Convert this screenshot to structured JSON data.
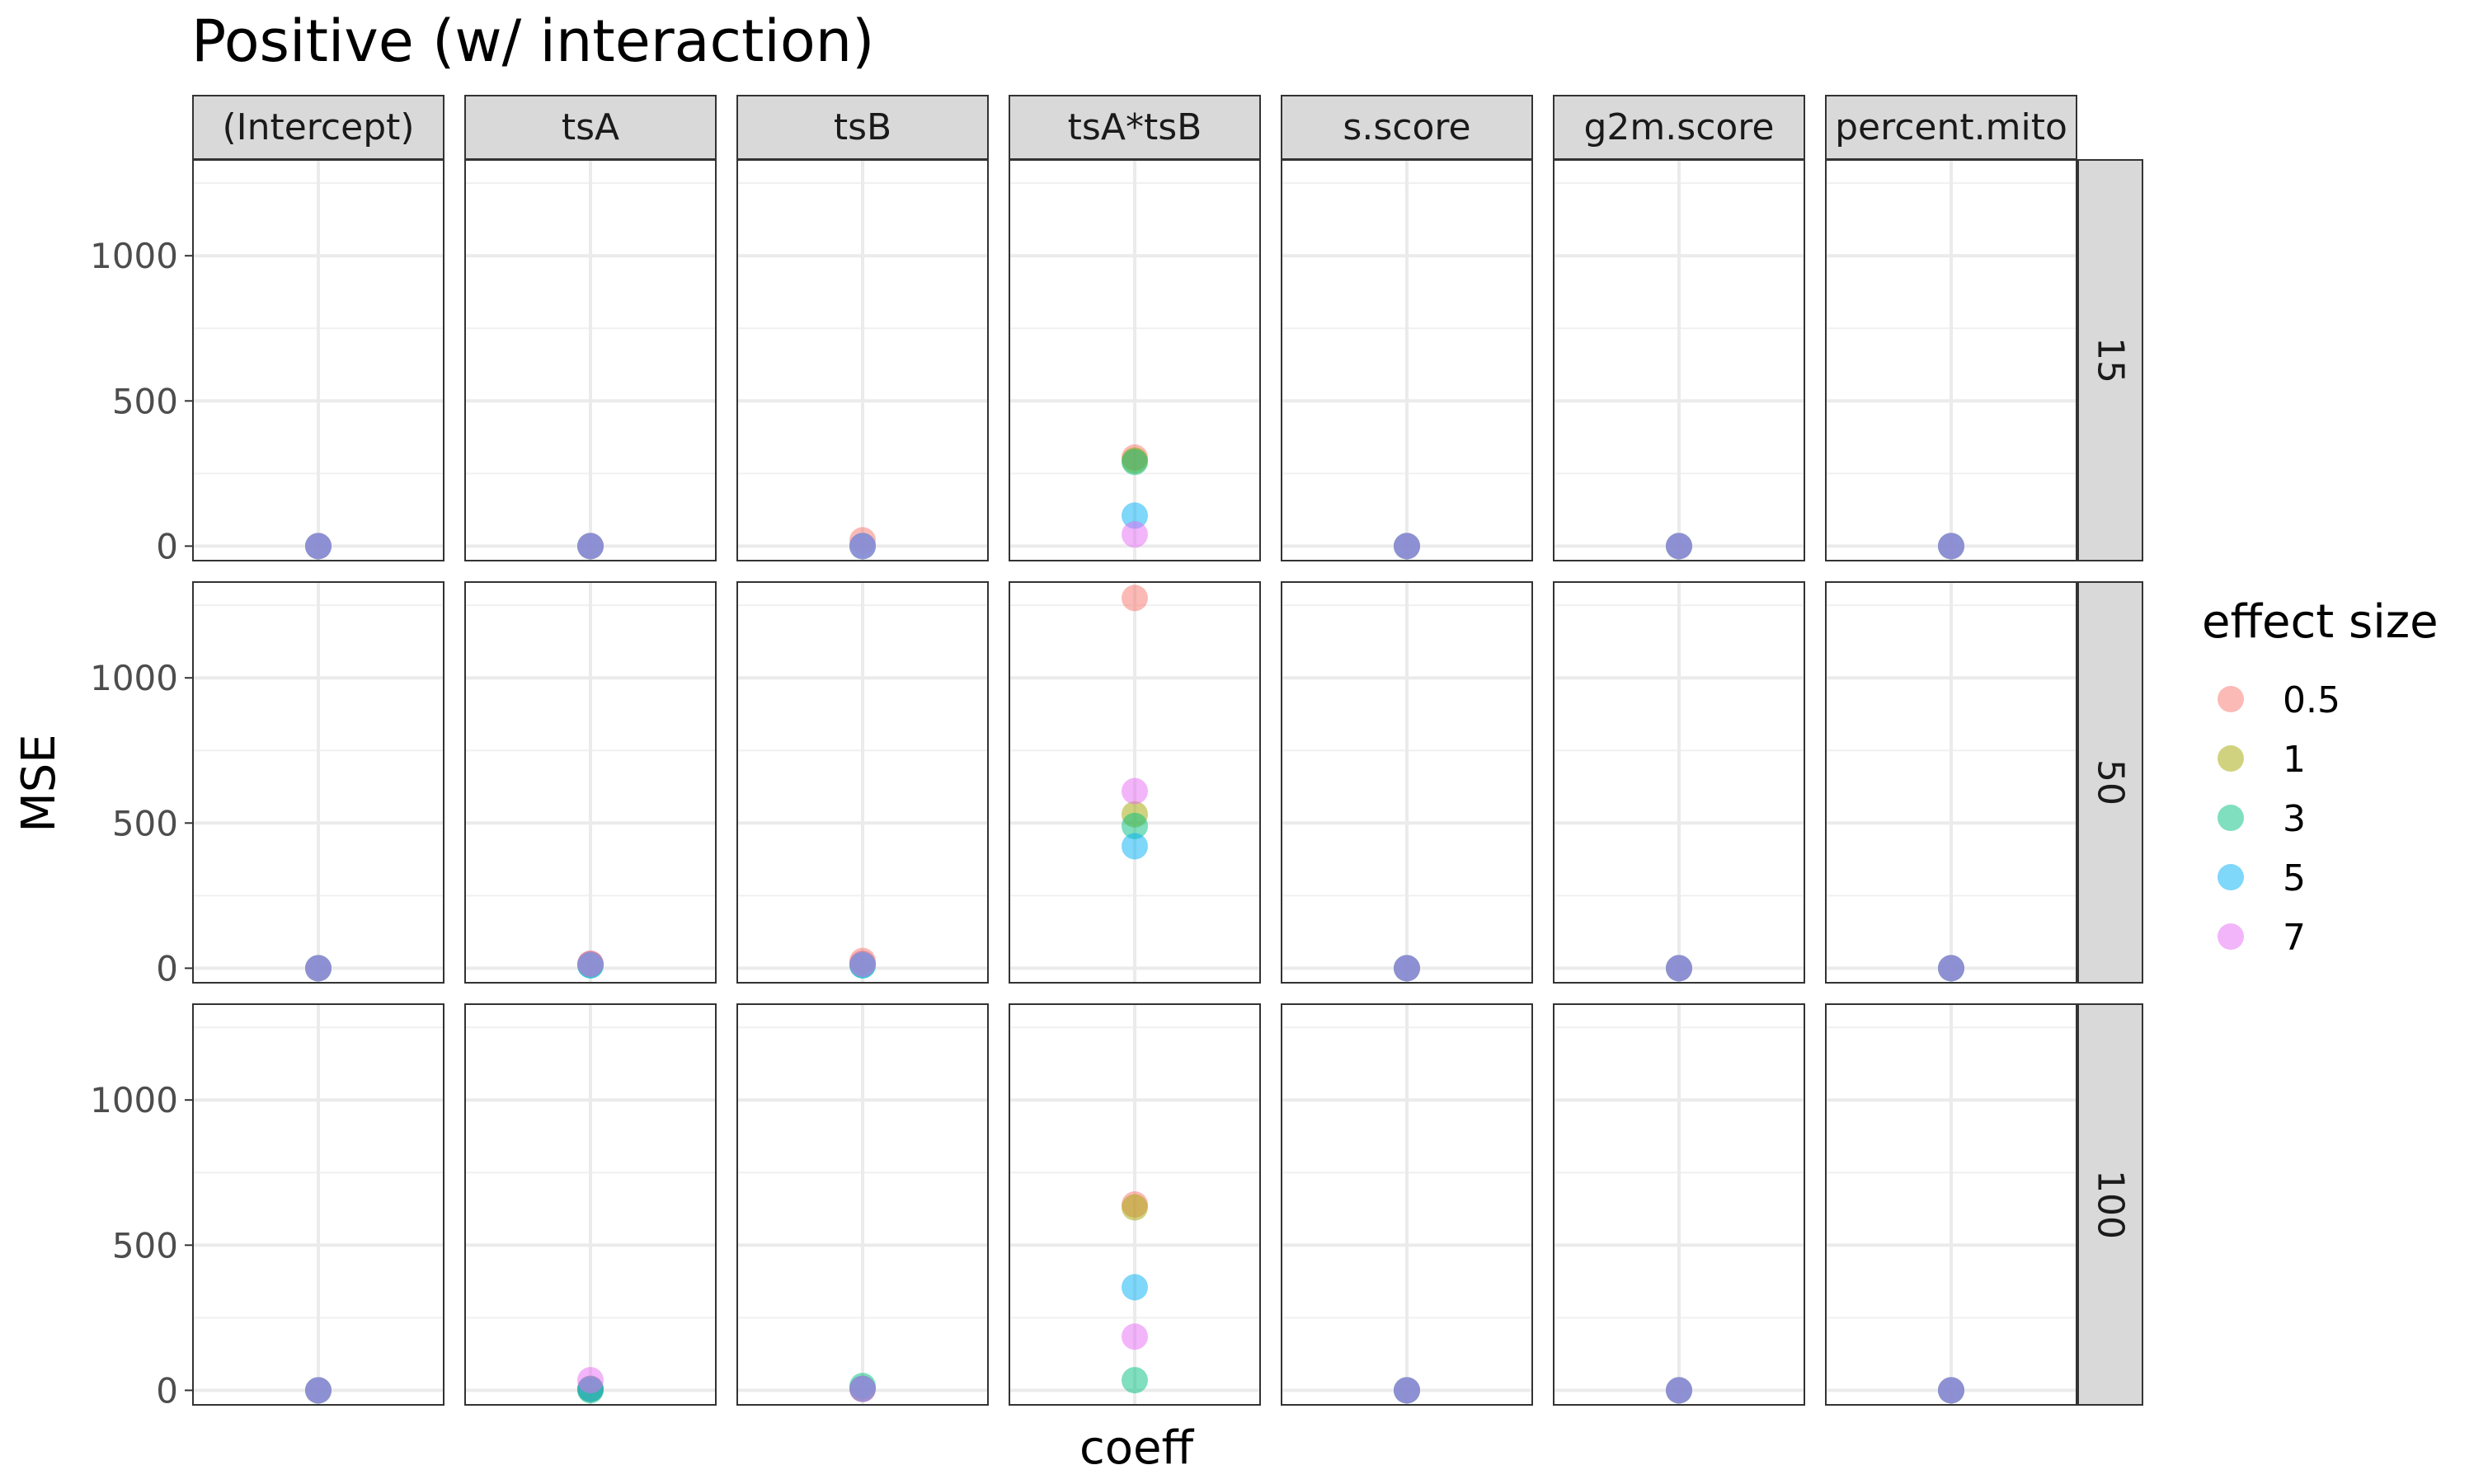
{
  "chart_data": {
    "type": "scatter",
    "title": "Positive (w/ interaction)",
    "xlabel": "coeff",
    "ylabel": "MSE",
    "ylim": [
      -50,
      1330
    ],
    "yticks": [
      0,
      500,
      1000
    ],
    "grid": true,
    "columns": [
      "(Intercept)",
      "tsA",
      "tsB",
      "tsA*tsB",
      "s.score",
      "g2m.score",
      "percent.mito"
    ],
    "rows": [
      "15",
      "50",
      "100"
    ],
    "legend": {
      "title": "effect size",
      "position": "right",
      "entries": [
        {
          "label": "0.5",
          "color": "#F8766D"
        },
        {
          "label": "1",
          "color": "#A3A500"
        },
        {
          "label": "3",
          "color": "#00BF7D"
        },
        {
          "label": "5",
          "color": "#00B0F6"
        },
        {
          "label": "7",
          "color": "#E76BF3"
        }
      ]
    },
    "series": [
      {
        "name": "0.5",
        "values": [
          [
            0,
            0,
            20,
            305,
            0,
            0,
            0
          ],
          [
            0,
            15,
            25,
            1275,
            0,
            0,
            0
          ],
          [
            0,
            5,
            5,
            640,
            0,
            0,
            0
          ]
        ]
      },
      {
        "name": "1",
        "values": [
          [
            0,
            0,
            0,
            295,
            0,
            0,
            0
          ],
          [
            0,
            15,
            15,
            530,
            0,
            0,
            0
          ],
          [
            0,
            5,
            5,
            630,
            0,
            0,
            0
          ]
        ]
      },
      {
        "name": "3",
        "values": [
          [
            0,
            0,
            0,
            290,
            0,
            0,
            0
          ],
          [
            0,
            10,
            10,
            490,
            0,
            0,
            0
          ],
          [
            0,
            0,
            15,
            35,
            0,
            0,
            0
          ]
        ]
      },
      {
        "name": "5",
        "values": [
          [
            0,
            0,
            0,
            105,
            0,
            0,
            0
          ],
          [
            0,
            10,
            10,
            420,
            0,
            0,
            0
          ],
          [
            0,
            5,
            5,
            355,
            0,
            0,
            0
          ]
        ]
      },
      {
        "name": "7",
        "values": [
          [
            0,
            0,
            0,
            40,
            0,
            0,
            0
          ],
          [
            0,
            15,
            15,
            610,
            0,
            0,
            0
          ],
          [
            0,
            35,
            5,
            185,
            0,
            0,
            0
          ]
        ]
      }
    ]
  }
}
